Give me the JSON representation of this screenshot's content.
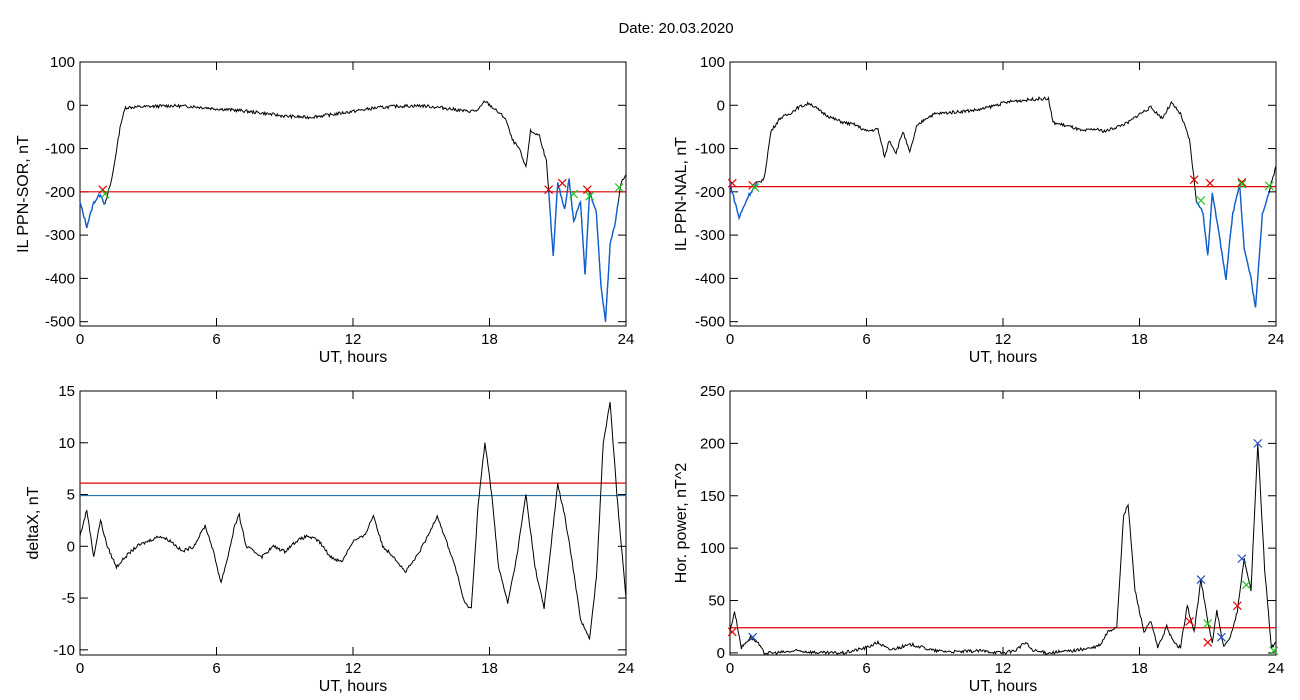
{
  "title": "Date:  20.03.2020",
  "colors": {
    "trace": "#000000",
    "threshold": "#e00000",
    "level": "#1f77b4",
    "highlight": "#1060d0",
    "marker_red": "#e00000",
    "marker_green": "#22c322",
    "marker_blue": "#1f4fc0"
  },
  "chart_data": [
    {
      "type": "line",
      "panel": "top-left",
      "xlabel": "UT, hours",
      "ylabel": "IL PPN-SOR, nT",
      "xlim": [
        0,
        24
      ],
      "ylim": [
        -510,
        100
      ],
      "xticks": [
        0,
        6,
        12,
        18,
        24
      ],
      "yticks": [
        100,
        0,
        -100,
        -200,
        -300,
        -400,
        -500
      ],
      "series": [
        {
          "values": [
            [
              0,
              -225
            ],
            [
              0.3,
              -280
            ],
            [
              0.6,
              -225
            ],
            [
              0.9,
              -205
            ],
            [
              1.1,
              -230
            ],
            [
              1.4,
              -170
            ],
            [
              1.8,
              -40
            ],
            [
              2.0,
              -5
            ],
            [
              3,
              -3
            ],
            [
              4,
              -1
            ],
            [
              5,
              -3
            ],
            [
              6,
              -8
            ],
            [
              7,
              -12
            ],
            [
              8,
              -18
            ],
            [
              9,
              -25
            ],
            [
              10,
              -28
            ],
            [
              11,
              -22
            ],
            [
              12,
              -14
            ],
            [
              13,
              -6
            ],
            [
              14,
              -2
            ],
            [
              15,
              -1
            ],
            [
              16,
              -6
            ],
            [
              17,
              -14
            ],
            [
              17.5,
              -12
            ],
            [
              17.8,
              10
            ],
            [
              18.2,
              -8
            ],
            [
              18.7,
              -30
            ],
            [
              19.0,
              -80
            ],
            [
              19.3,
              -100
            ],
            [
              19.6,
              -145
            ],
            [
              19.8,
              -60
            ],
            [
              20.2,
              -70
            ],
            [
              20.5,
              -130
            ],
            [
              20.6,
              -200
            ],
            [
              20.8,
              -350
            ],
            [
              21.0,
              -180
            ],
            [
              21.3,
              -240
            ],
            [
              21.5,
              -170
            ],
            [
              21.7,
              -270
            ],
            [
              22.0,
              -220
            ],
            [
              22.2,
              -390
            ],
            [
              22.4,
              -200
            ],
            [
              22.7,
              -250
            ],
            [
              22.9,
              -420
            ],
            [
              23.1,
              -500
            ],
            [
              23.3,
              -320
            ],
            [
              23.5,
              -280
            ],
            [
              23.8,
              -175
            ],
            [
              24,
              -160
            ]
          ]
        }
      ],
      "thresholds": [
        {
          "y": -200,
          "color": "red"
        }
      ],
      "markers": [
        {
          "x": 1.0,
          "y": -195,
          "c": "red"
        },
        {
          "x": 1.1,
          "y": -205,
          "c": "green"
        },
        {
          "x": 20.6,
          "y": -195,
          "c": "red"
        },
        {
          "x": 21.2,
          "y": -180,
          "c": "red"
        },
        {
          "x": 21.7,
          "y": -205,
          "c": "green"
        },
        {
          "x": 22.3,
          "y": -195,
          "c": "red"
        },
        {
          "x": 22.4,
          "y": -210,
          "c": "green"
        },
        {
          "x": 23.7,
          "y": -190,
          "c": "green"
        }
      ],
      "highlight_segments": [
        [
          0,
          1.1
        ],
        [
          20.6,
          23.7
        ]
      ]
    },
    {
      "type": "line",
      "panel": "top-right",
      "xlabel": "UT, hours",
      "ylabel": "IL PPN-NAL, nT",
      "xlim": [
        0,
        24
      ],
      "ylim": [
        -510,
        100
      ],
      "xticks": [
        0,
        6,
        12,
        18,
        24
      ],
      "yticks": [
        100,
        0,
        -100,
        -200,
        -300,
        -400,
        -500
      ],
      "series": [
        {
          "values": [
            [
              0,
              -180
            ],
            [
              0.4,
              -260
            ],
            [
              0.8,
              -210
            ],
            [
              1.2,
              -180
            ],
            [
              1.5,
              -170
            ],
            [
              1.8,
              -60
            ],
            [
              2.2,
              -30
            ],
            [
              2.6,
              -20
            ],
            [
              3,
              -5
            ],
            [
              3.5,
              5
            ],
            [
              4,
              -15
            ],
            [
              4.5,
              -30
            ],
            [
              5,
              -40
            ],
            [
              5.5,
              -45
            ],
            [
              6,
              -60
            ],
            [
              6.5,
              -55
            ],
            [
              6.8,
              -120
            ],
            [
              7.0,
              -80
            ],
            [
              7.3,
              -110
            ],
            [
              7.6,
              -60
            ],
            [
              7.9,
              -110
            ],
            [
              8.2,
              -50
            ],
            [
              8.6,
              -30
            ],
            [
              9,
              -20
            ],
            [
              10,
              -15
            ],
            [
              11,
              -10
            ],
            [
              12,
              5
            ],
            [
              12.5,
              10
            ],
            [
              13,
              12
            ],
            [
              13.5,
              15
            ],
            [
              14,
              15
            ],
            [
              14.2,
              -40
            ],
            [
              15,
              -50
            ],
            [
              15.5,
              -60
            ],
            [
              16,
              -55
            ],
            [
              16.5,
              -60
            ],
            [
              17,
              -50
            ],
            [
              17.5,
              -40
            ],
            [
              18,
              -20
            ],
            [
              18.5,
              -5
            ],
            [
              19,
              -30
            ],
            [
              19.4,
              5
            ],
            [
              19.8,
              -20
            ],
            [
              20.2,
              -80
            ],
            [
              20.5,
              -220
            ],
            [
              20.8,
              -250
            ],
            [
              21.0,
              -350
            ],
            [
              21.2,
              -200
            ],
            [
              21.5,
              -300
            ],
            [
              21.8,
              -400
            ],
            [
              22.1,
              -250
            ],
            [
              22.4,
              -180
            ],
            [
              22.6,
              -330
            ],
            [
              22.9,
              -400
            ],
            [
              23.1,
              -470
            ],
            [
              23.4,
              -250
            ],
            [
              23.7,
              -200
            ],
            [
              24,
              -140
            ]
          ]
        }
      ],
      "thresholds": [
        {
          "y": -188,
          "color": "red"
        }
      ],
      "markers": [
        {
          "x": 0.1,
          "y": -180,
          "c": "red"
        },
        {
          "x": 1.0,
          "y": -185,
          "c": "red"
        },
        {
          "x": 1.1,
          "y": -190,
          "c": "green"
        },
        {
          "x": 20.4,
          "y": -172,
          "c": "red"
        },
        {
          "x": 20.7,
          "y": -220,
          "c": "green"
        },
        {
          "x": 21.1,
          "y": -180,
          "c": "red"
        },
        {
          "x": 22.5,
          "y": -178,
          "c": "red"
        },
        {
          "x": 22.5,
          "y": -182,
          "c": "green"
        },
        {
          "x": 23.7,
          "y": -186,
          "c": "green"
        }
      ],
      "highlight_segments": [
        [
          0,
          1.2
        ],
        [
          20.5,
          23.7
        ]
      ]
    },
    {
      "type": "line",
      "panel": "bottom-left",
      "xlabel": "UT, hours",
      "ylabel": "deltaX, nT",
      "xlim": [
        0,
        24
      ],
      "ylim": [
        -10.5,
        15
      ],
      "xticks": [
        0,
        6,
        12,
        18,
        24
      ],
      "yticks": [
        15,
        10,
        5,
        0,
        -5,
        -10
      ],
      "series": [
        {
          "values": [
            [
              0,
              1
            ],
            [
              0.3,
              3.5
            ],
            [
              0.6,
              -1
            ],
            [
              0.9,
              2.5
            ],
            [
              1.2,
              0
            ],
            [
              1.6,
              -2
            ],
            [
              2,
              -1
            ],
            [
              2.5,
              0
            ],
            [
              3,
              0.5
            ],
            [
              3.5,
              1
            ],
            [
              4,
              0.5
            ],
            [
              4.5,
              -0.5
            ],
            [
              5,
              0
            ],
            [
              5.5,
              2
            ],
            [
              5.8,
              0
            ],
            [
              6.2,
              -3.5
            ],
            [
              6.5,
              -1
            ],
            [
              6.8,
              2
            ],
            [
              7,
              3
            ],
            [
              7.3,
              0
            ],
            [
              8,
              -1
            ],
            [
              8.5,
              0
            ],
            [
              9,
              -0.5
            ],
            [
              9.5,
              0.5
            ],
            [
              10,
              1
            ],
            [
              10.5,
              0.5
            ],
            [
              11,
              -1
            ],
            [
              11.5,
              -1.5
            ],
            [
              12,
              0.5
            ],
            [
              12.5,
              1
            ],
            [
              12.9,
              3
            ],
            [
              13.3,
              0
            ],
            [
              13.8,
              -1
            ],
            [
              14.3,
              -2.5
            ],
            [
              14.8,
              -1
            ],
            [
              15.3,
              1
            ],
            [
              15.7,
              3
            ],
            [
              16.1,
              0.5
            ],
            [
              16.5,
              -2
            ],
            [
              16.9,
              -5.5
            ],
            [
              17.2,
              -6
            ],
            [
              17.5,
              4
            ],
            [
              17.8,
              10
            ],
            [
              18.1,
              5
            ],
            [
              18.4,
              -2
            ],
            [
              18.8,
              -5.5
            ],
            [
              19.2,
              -1
            ],
            [
              19.6,
              5
            ],
            [
              20.0,
              -2
            ],
            [
              20.4,
              -6
            ],
            [
              20.8,
              2
            ],
            [
              21.0,
              6
            ],
            [
              21.3,
              3
            ],
            [
              21.6,
              -1
            ],
            [
              22.0,
              -7
            ],
            [
              22.4,
              -9
            ],
            [
              22.7,
              -3
            ],
            [
              23.0,
              10
            ],
            [
              23.3,
              14
            ],
            [
              23.6,
              5
            ],
            [
              24,
              -5
            ]
          ]
        }
      ],
      "thresholds": [
        {
          "y": 6.1,
          "color": "red"
        },
        {
          "y": 4.9,
          "color": "blue"
        }
      ]
    },
    {
      "type": "line",
      "panel": "bottom-right",
      "xlabel": "UT, hours",
      "ylabel": "Hor. power, nT^2",
      "xlim": [
        0,
        24
      ],
      "ylim": [
        -2,
        250
      ],
      "xticks": [
        0,
        6,
        12,
        18,
        24
      ],
      "yticks": [
        250,
        200,
        150,
        100,
        50,
        0
      ],
      "series": [
        {
          "values": [
            [
              0,
              20
            ],
            [
              0.2,
              40
            ],
            [
              0.5,
              5
            ],
            [
              0.9,
              15
            ],
            [
              1.2,
              10
            ],
            [
              1.5,
              0
            ],
            [
              2,
              0
            ],
            [
              3,
              2
            ],
            [
              4,
              0
            ],
            [
              5,
              0
            ],
            [
              6,
              5
            ],
            [
              6.5,
              10
            ],
            [
              7,
              3
            ],
            [
              8,
              8
            ],
            [
              9,
              2
            ],
            [
              10,
              1
            ],
            [
              11,
              2
            ],
            [
              12,
              0
            ],
            [
              12.5,
              2
            ],
            [
              13,
              10
            ],
            [
              13.3,
              2
            ],
            [
              14,
              0
            ],
            [
              15,
              2
            ],
            [
              16,
              5
            ],
            [
              16.3,
              8
            ],
            [
              16.6,
              20
            ],
            [
              17,
              25
            ],
            [
              17.3,
              130
            ],
            [
              17.5,
              142
            ],
            [
              17.8,
              60
            ],
            [
              18.2,
              20
            ],
            [
              18.5,
              30
            ],
            [
              18.8,
              5
            ],
            [
              19.2,
              25
            ],
            [
              19.5,
              10
            ],
            [
              19.8,
              5
            ],
            [
              20.1,
              45
            ],
            [
              20.4,
              20
            ],
            [
              20.7,
              70
            ],
            [
              21.0,
              30
            ],
            [
              21.2,
              10
            ],
            [
              21.4,
              40
            ],
            [
              21.7,
              5
            ],
            [
              22.0,
              15
            ],
            [
              22.3,
              40
            ],
            [
              22.6,
              90
            ],
            [
              22.9,
              60
            ],
            [
              23.2,
              200
            ],
            [
              23.5,
              80
            ],
            [
              23.8,
              5
            ],
            [
              24,
              10
            ]
          ]
        }
      ],
      "thresholds": [
        {
          "y": 24,
          "color": "red"
        }
      ],
      "markers": [
        {
          "x": 0.1,
          "y": 20,
          "c": "red"
        },
        {
          "x": 1.0,
          "y": 15,
          "c": "blue"
        },
        {
          "x": 20.2,
          "y": 30,
          "c": "red"
        },
        {
          "x": 20.7,
          "y": 70,
          "c": "blue"
        },
        {
          "x": 21.0,
          "y": 28,
          "c": "green"
        },
        {
          "x": 21.0,
          "y": 10,
          "c": "red"
        },
        {
          "x": 21.6,
          "y": 15,
          "c": "blue"
        },
        {
          "x": 22.3,
          "y": 45,
          "c": "red"
        },
        {
          "x": 22.5,
          "y": 90,
          "c": "blue"
        },
        {
          "x": 22.7,
          "y": 65,
          "c": "green"
        },
        {
          "x": 23.2,
          "y": 200,
          "c": "blue"
        },
        {
          "x": 23.9,
          "y": 2,
          "c": "green"
        }
      ]
    }
  ]
}
